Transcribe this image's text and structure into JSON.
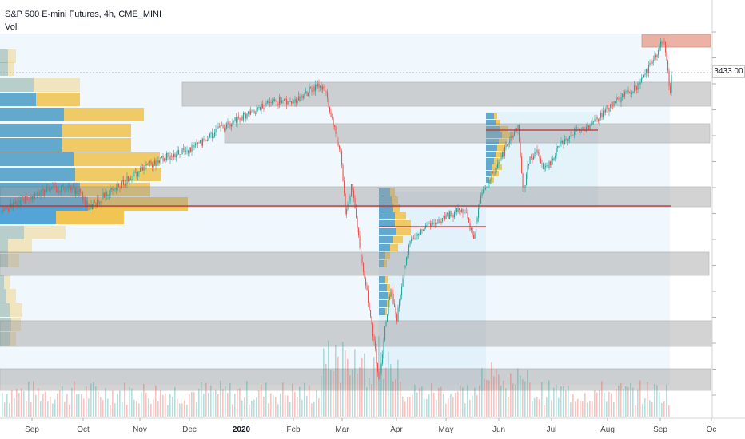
{
  "header": {
    "symbol": "S&P 500 E-mini Futures, 4h, CME_MINI",
    "indicator": "Vol"
  },
  "price_axis": {
    "last_price": "3433.00",
    "last_price_value": 3433
  },
  "time_axis": {
    "labels": [
      "Sep",
      "Oct",
      "Nov",
      "Dec",
      "2020",
      "Feb",
      "Mar",
      "Apr",
      "May",
      "Jun",
      "Jul",
      "Aug",
      "Sep",
      "Oc"
    ],
    "bold_label": "2020"
  },
  "colors": {
    "background": "#ffffff",
    "zone_fill": "#9e9e9e",
    "supply_zone": "#e8a08f",
    "poc_line": "#c62828",
    "vp_blue": "#4aa3df",
    "vp_yellow": "#f0c24b",
    "candle_up": "#26a69a",
    "candle_down": "#ef5350",
    "range_tint": "#d8ecf8"
  }
}
